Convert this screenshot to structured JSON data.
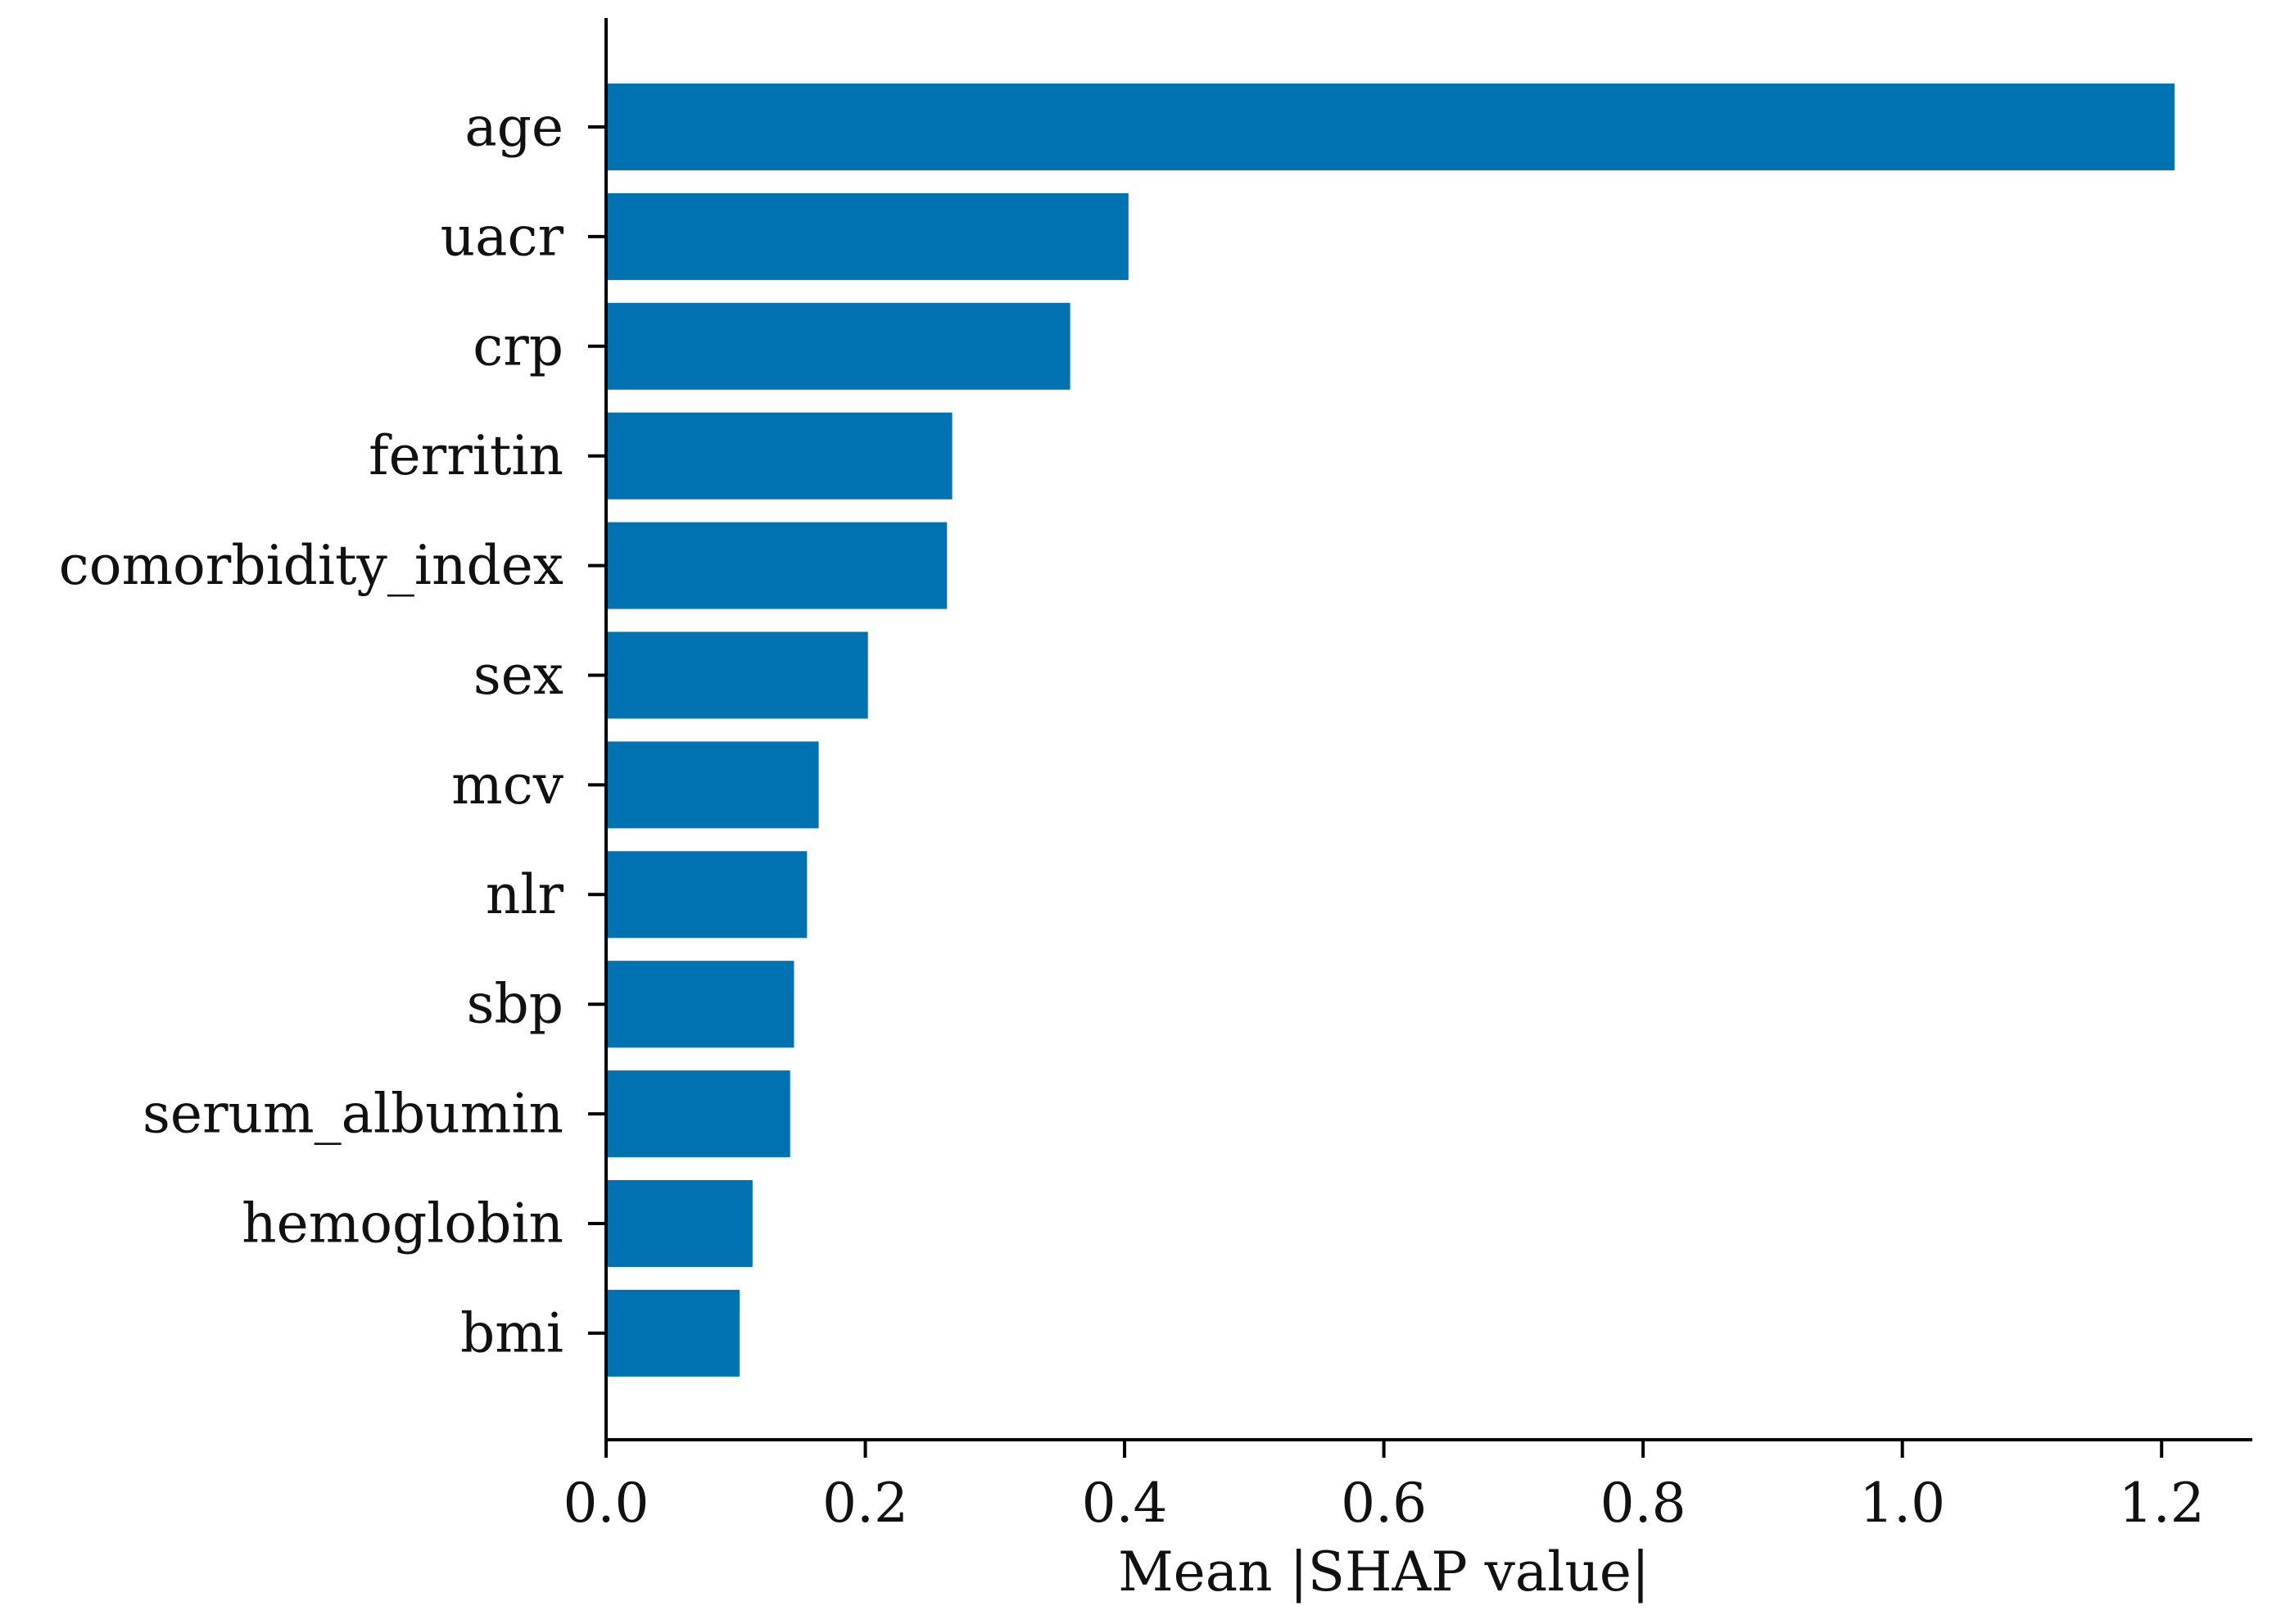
{
  "chart_data": {
    "type": "bar",
    "orientation": "horizontal",
    "categories": [
      "age",
      "uacr",
      "crp",
      "ferritin",
      "comorbidity_index",
      "sex",
      "mcv",
      "nlr",
      "sbp",
      "serum_albumin",
      "hemoglobin",
      "bmi"
    ],
    "values": [
      1.21,
      0.403,
      0.358,
      0.267,
      0.263,
      0.202,
      0.164,
      0.155,
      0.145,
      0.142,
      0.113,
      0.103
    ],
    "xlabel": "Mean |SHAP value|",
    "ylabel": "",
    "xlim": [
      0.0,
      1.27
    ],
    "xticks": [
      0.0,
      0.2,
      0.4,
      0.6,
      0.8,
      1.0,
      1.2
    ],
    "xtick_labels": [
      "0.0",
      "0.2",
      "0.4",
      "0.6",
      "0.8",
      "1.0",
      "1.2"
    ],
    "grid": false,
    "bar_color": "#0072b2",
    "axis_color": "#000000"
  }
}
